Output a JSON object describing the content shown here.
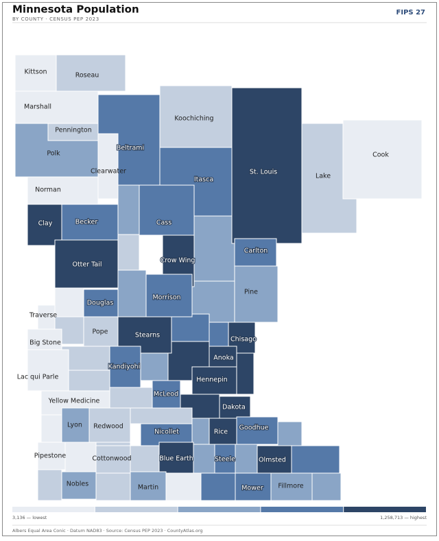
{
  "header": {
    "title": "Minnesota Population",
    "subtitle": "BY COUNTY · CENSUS PEP 2023",
    "badge": "FIPS 27"
  },
  "legend": {
    "colors": [
      "#e9edf3",
      "#c3cfdf",
      "#8aa5c6",
      "#5579a8",
      "#2d4566"
    ],
    "low_label": "3,136 — lowest",
    "high_label": "1,258,713 — highest"
  },
  "counties": [
    {
      "name": "Kittson",
      "color": "#e9edf3"
    },
    {
      "name": "Roseau",
      "color": "#c3cfdf"
    },
    {
      "name": "Marshall",
      "color": "#e9edf3"
    },
    {
      "name": "Polk",
      "color": "#8aa5c6"
    },
    {
      "name": "Pennington",
      "color": "#c3cfdf"
    },
    {
      "name": "Beltrami",
      "color": "#5579a8"
    },
    {
      "name": "Clearwater",
      "color": "#e9edf3"
    },
    {
      "name": "Koochiching",
      "color": "#c3cfdf"
    },
    {
      "name": "St. Louis",
      "color": "#2d4566"
    },
    {
      "name": "Lake",
      "color": "#c3cfdf"
    },
    {
      "name": "Cook",
      "color": "#e9edf3"
    },
    {
      "name": "Norman",
      "color": "#e9edf3"
    },
    {
      "name": "Itasca",
      "color": "#5579a8"
    },
    {
      "name": "Clay",
      "color": "#2d4566"
    },
    {
      "name": "Becker",
      "color": "#5579a8"
    },
    {
      "name": "Cass",
      "color": "#5579a8"
    },
    {
      "name": "Carlton",
      "color": "#5579a8"
    },
    {
      "name": "Crow Wing",
      "color": "#2d4566"
    },
    {
      "name": "Otter Tail",
      "color": "#2d4566"
    },
    {
      "name": "Pine",
      "color": "#8aa5c6"
    },
    {
      "name": "Morrison",
      "color": "#5579a8"
    },
    {
      "name": "Douglas",
      "color": "#5579a8"
    },
    {
      "name": "Traverse",
      "color": "#e9edf3"
    },
    {
      "name": "Chisago",
      "color": "#2d4566"
    },
    {
      "name": "Stearns",
      "color": "#2d4566"
    },
    {
      "name": "Pope",
      "color": "#c3cfdf"
    },
    {
      "name": "Big Stone",
      "color": "#e9edf3"
    },
    {
      "name": "Anoka",
      "color": "#2d4566"
    },
    {
      "name": "Kandiyohi",
      "color": "#5579a8"
    },
    {
      "name": "Lac qui Parle",
      "color": "#e9edf3"
    },
    {
      "name": "Hennepin",
      "color": "#2d4566"
    },
    {
      "name": "Yellow Medicine",
      "color": "#e9edf3"
    },
    {
      "name": "McLeod",
      "color": "#5579a8"
    },
    {
      "name": "Dakota",
      "color": "#2d4566"
    },
    {
      "name": "Lyon",
      "color": "#8aa5c6"
    },
    {
      "name": "Redwood",
      "color": "#c3cfdf"
    },
    {
      "name": "Nicollet",
      "color": "#5579a8"
    },
    {
      "name": "Rice",
      "color": "#2d4566"
    },
    {
      "name": "Goodhue",
      "color": "#5579a8"
    },
    {
      "name": "Pipestone",
      "color": "#e9edf3"
    },
    {
      "name": "Cottonwood",
      "color": "#c3cfdf"
    },
    {
      "name": "Blue Earth",
      "color": "#2d4566"
    },
    {
      "name": "Steele",
      "color": "#5579a8"
    },
    {
      "name": "Olmsted",
      "color": "#2d4566"
    },
    {
      "name": "Nobles",
      "color": "#8aa5c6"
    },
    {
      "name": "Martin",
      "color": "#8aa5c6"
    },
    {
      "name": "Mower",
      "color": "#5579a8"
    },
    {
      "name": "Fillmore",
      "color": "#8aa5c6"
    }
  ],
  "footer": "Albers Equal Area Conic · Datum NAD83 · Source: Census PEP 2023 · CountyAtlas.org"
}
